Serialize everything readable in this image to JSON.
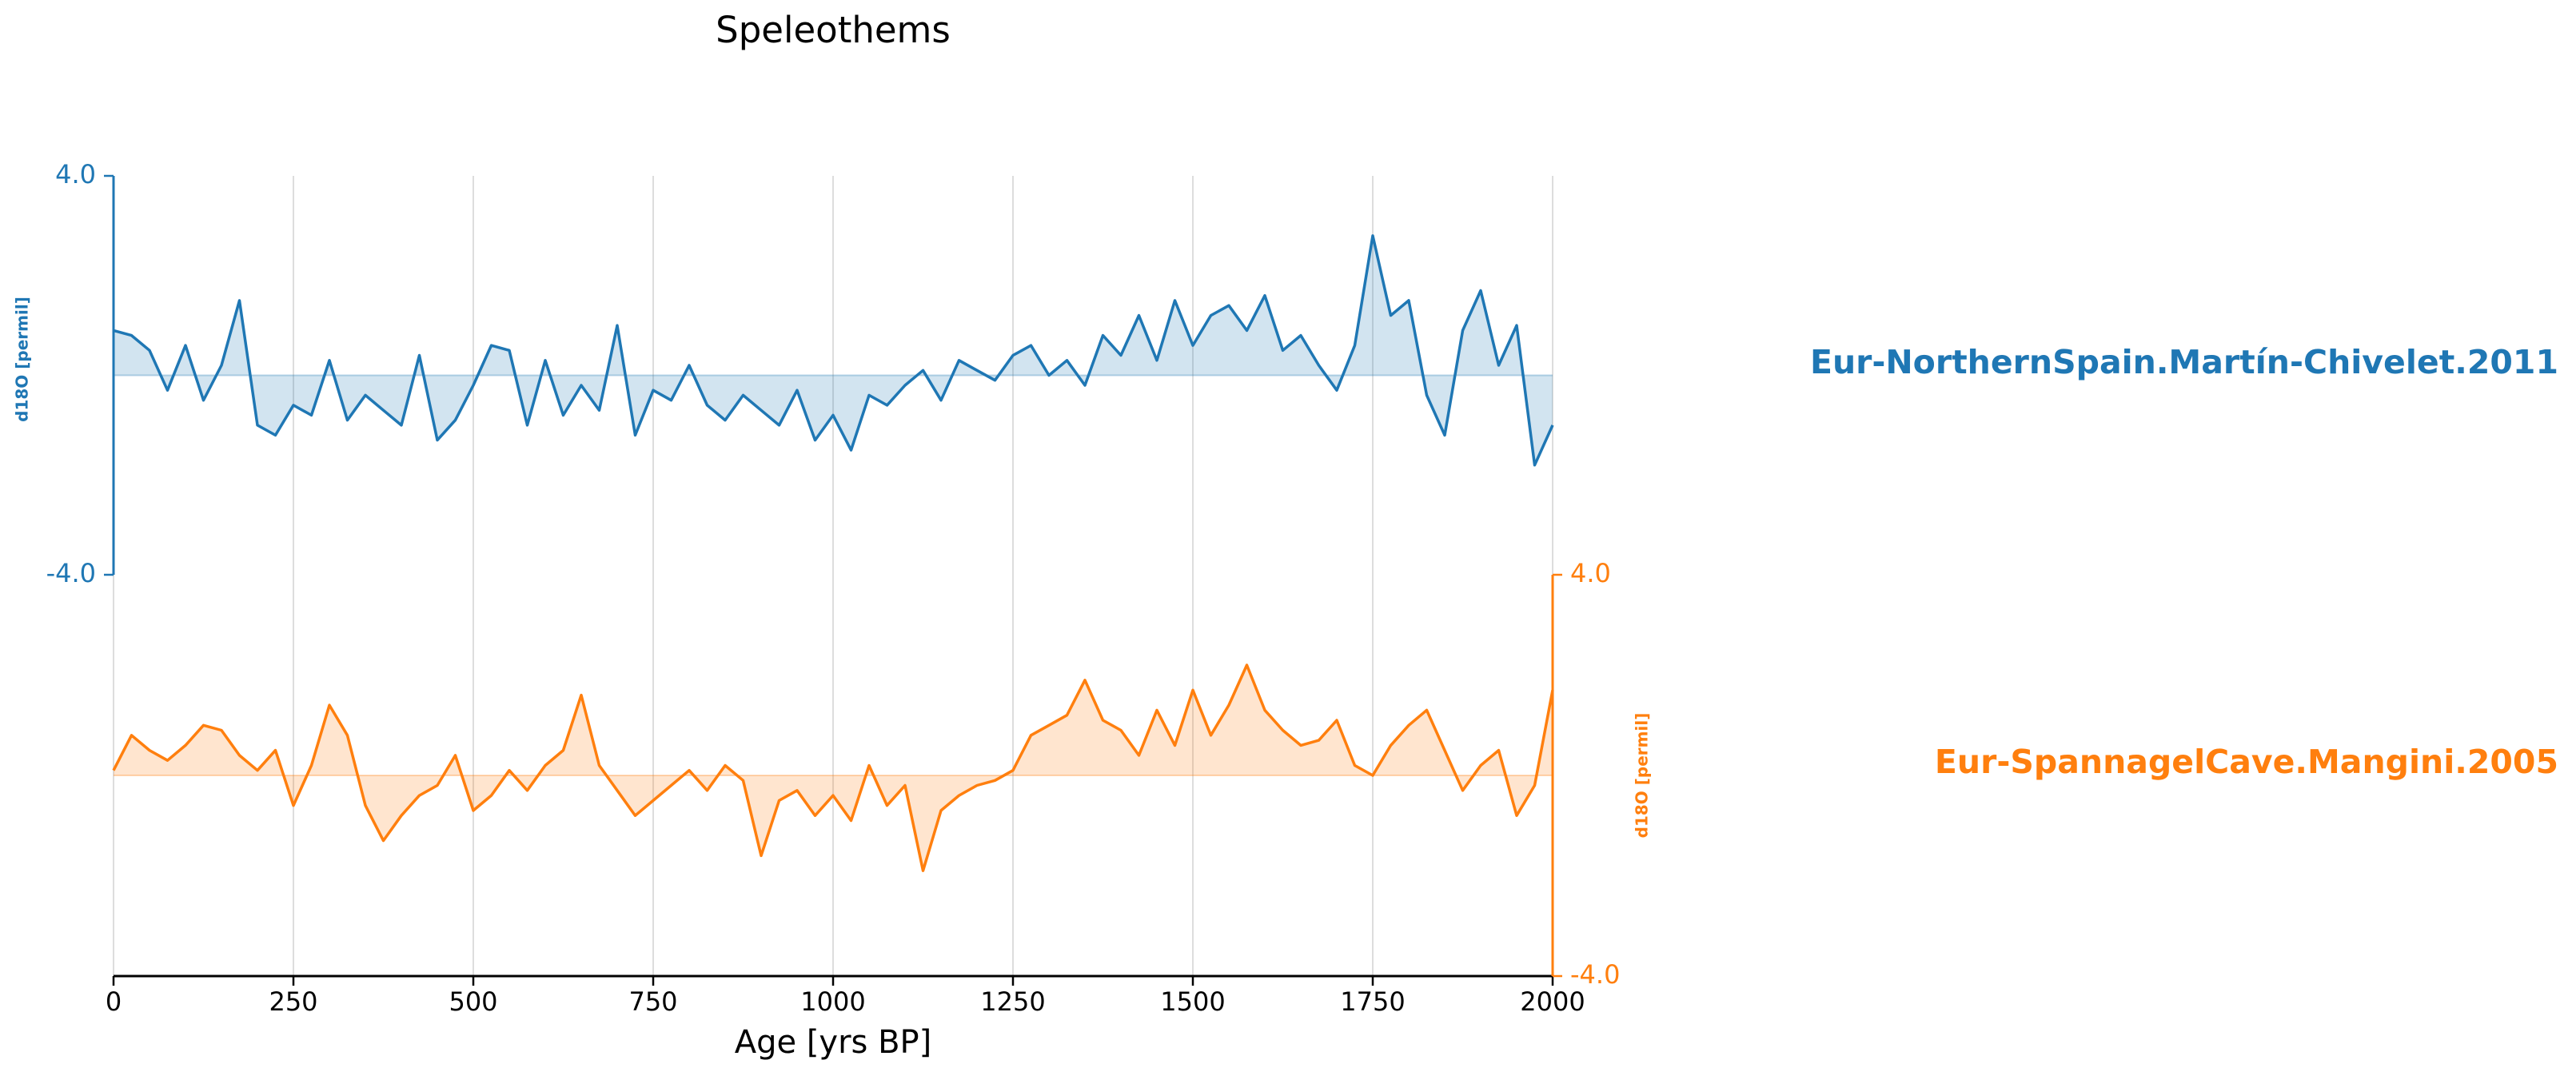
{
  "chart_data": {
    "type": "line",
    "title": "Speleothems",
    "xlabel": "Age [yrs BP]",
    "xlim": [
      0,
      2000
    ],
    "xticks": [
      0,
      250,
      500,
      750,
      1000,
      1250,
      1500,
      1750,
      2000
    ],
    "grid": true,
    "x": [
      0,
      25,
      50,
      75,
      100,
      125,
      150,
      175,
      200,
      225,
      250,
      275,
      300,
      325,
      350,
      375,
      400,
      425,
      450,
      475,
      500,
      525,
      550,
      575,
      600,
      625,
      650,
      675,
      700,
      725,
      750,
      775,
      800,
      825,
      850,
      875,
      900,
      925,
      950,
      975,
      1000,
      1025,
      1050,
      1075,
      1100,
      1125,
      1150,
      1175,
      1200,
      1225,
      1250,
      1275,
      1300,
      1325,
      1350,
      1375,
      1400,
      1425,
      1450,
      1475,
      1500,
      1525,
      1550,
      1575,
      1600,
      1625,
      1650,
      1675,
      1700,
      1725,
      1750,
      1775,
      1800,
      1825,
      1850,
      1875,
      1900,
      1925,
      1950,
      1975,
      2000
    ],
    "series": [
      {
        "name": "Eur-NorthernSpain.Martín-Chivelet.2011",
        "color": "#1f77b4",
        "ylabel": "d18O [permil]",
        "ylim": [
          -4,
          4
        ],
        "yticks": [
          {
            "value": 4,
            "label": "4.0"
          },
          {
            "value": -4,
            "label": "-4.0"
          }
        ],
        "axis_side": "left",
        "values": [
          0.9,
          0.8,
          0.5,
          -0.3,
          0.6,
          -0.5,
          0.2,
          1.5,
          -1.0,
          -1.2,
          -0.6,
          -0.8,
          0.3,
          -0.9,
          -0.4,
          -0.7,
          -1.0,
          0.4,
          -1.3,
          -0.9,
          -0.2,
          0.6,
          0.5,
          -1.0,
          0.3,
          -0.8,
          -0.2,
          -0.7,
          1.0,
          -1.2,
          -0.3,
          -0.5,
          0.2,
          -0.6,
          -0.9,
          -0.4,
          -0.7,
          -1.0,
          -0.3,
          -1.3,
          -0.8,
          -1.5,
          -0.4,
          -0.6,
          -0.2,
          0.1,
          -0.5,
          0.3,
          0.1,
          -0.1,
          0.4,
          0.6,
          0.0,
          0.3,
          -0.2,
          0.8,
          0.4,
          1.2,
          0.3,
          1.5,
          0.6,
          1.2,
          1.4,
          0.9,
          1.6,
          0.5,
          0.8,
          0.2,
          -0.3,
          0.6,
          2.8,
          1.2,
          1.5,
          -0.4,
          -1.2,
          0.9,
          1.7,
          0.2,
          1.0,
          -1.8,
          -1.0
        ]
      },
      {
        "name": "Eur-SpannagelCave.Mangini.2005",
        "color": "#ff7f0e",
        "ylabel": "d18O [permil]",
        "ylim": [
          -4,
          4
        ],
        "yticks": [
          {
            "value": 4,
            "label": "4.0"
          },
          {
            "value": -4,
            "label": "-4.0"
          }
        ],
        "axis_side": "right",
        "values": [
          0.1,
          0.8,
          0.5,
          0.3,
          0.6,
          1.0,
          0.9,
          0.4,
          0.1,
          0.5,
          -0.6,
          0.2,
          1.4,
          0.8,
          -0.6,
          -1.3,
          -0.8,
          -0.4,
          -0.2,
          0.4,
          -0.7,
          -0.4,
          0.1,
          -0.3,
          0.2,
          0.5,
          1.6,
          0.2,
          -0.3,
          -0.8,
          -0.5,
          -0.2,
          0.1,
          -0.3,
          0.2,
          -0.1,
          -1.6,
          -0.5,
          -0.3,
          -0.8,
          -0.4,
          -0.9,
          0.2,
          -0.6,
          -0.2,
          -1.9,
          -0.7,
          -0.4,
          -0.2,
          -0.1,
          0.1,
          0.8,
          1.0,
          1.2,
          1.9,
          1.1,
          0.9,
          0.4,
          1.3,
          0.6,
          1.7,
          0.8,
          1.4,
          2.2,
          1.3,
          0.9,
          0.6,
          0.7,
          1.1,
          0.2,
          0.0,
          0.6,
          1.0,
          1.3,
          0.5,
          -0.3,
          0.2,
          0.5,
          -0.8,
          -0.2,
          1.7
        ]
      }
    ]
  }
}
